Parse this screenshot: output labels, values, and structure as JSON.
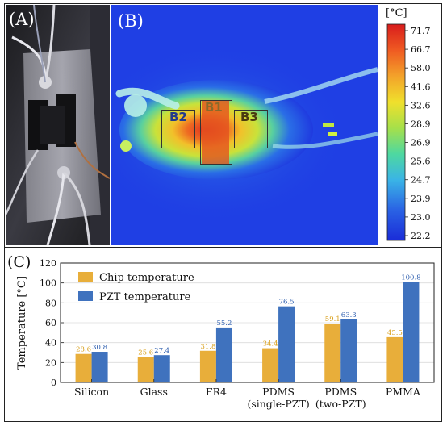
{
  "panels": {
    "a_label": "(A)",
    "b_label": "(B)",
    "c_label": "(C)"
  },
  "thermal": {
    "regions": [
      "B1",
      "B2",
      "B3"
    ],
    "colorbar": {
      "unit": "[°C]",
      "ticks": [
        "71.7",
        "66.7",
        "58.0",
        "41.6",
        "32.6",
        "28.9",
        "26.9",
        "25.6",
        "24.7",
        "23.9",
        "23.0",
        "22.2"
      ]
    }
  },
  "chart_data": {
    "type": "bar",
    "categories": [
      "Silicon",
      "Glass",
      "FR4",
      "PDMS (single-PZT)",
      "PDMS (two-PZT)",
      "PMMA"
    ],
    "category_lines": [
      [
        "Silicon"
      ],
      [
        "Glass"
      ],
      [
        "FR4"
      ],
      [
        "PDMS",
        "(single-PZT)"
      ],
      [
        "PDMS",
        "(two-PZT)"
      ],
      [
        "PMMA"
      ]
    ],
    "series": [
      {
        "name": "Chip temperature",
        "color": "#E8AE3A",
        "label_color": "#D9A11E",
        "values": [
          28.6,
          25.6,
          31.8,
          34.4,
          59.1,
          45.5
        ]
      },
      {
        "name": "PZT temperature",
        "color": "#3F72BE",
        "label_color": "#2F5FAF",
        "values": [
          30.8,
          27.4,
          55.2,
          76.5,
          63.3,
          100.8
        ]
      }
    ],
    "value_labels": [
      [
        "28.6",
        "25.6",
        "31.8",
        "34.4",
        "59.1",
        "45.5"
      ],
      [
        "30.8",
        "27.4",
        "55.2",
        "76.5",
        "63.3",
        "100.8"
      ]
    ],
    "title": "",
    "xlabel": "",
    "ylabel": "Temperature [°C]",
    "ylim": [
      0,
      120
    ],
    "yticks": [
      0,
      20,
      40,
      60,
      80,
      100,
      120
    ],
    "grid": "horizontal",
    "legend": "top-left"
  }
}
